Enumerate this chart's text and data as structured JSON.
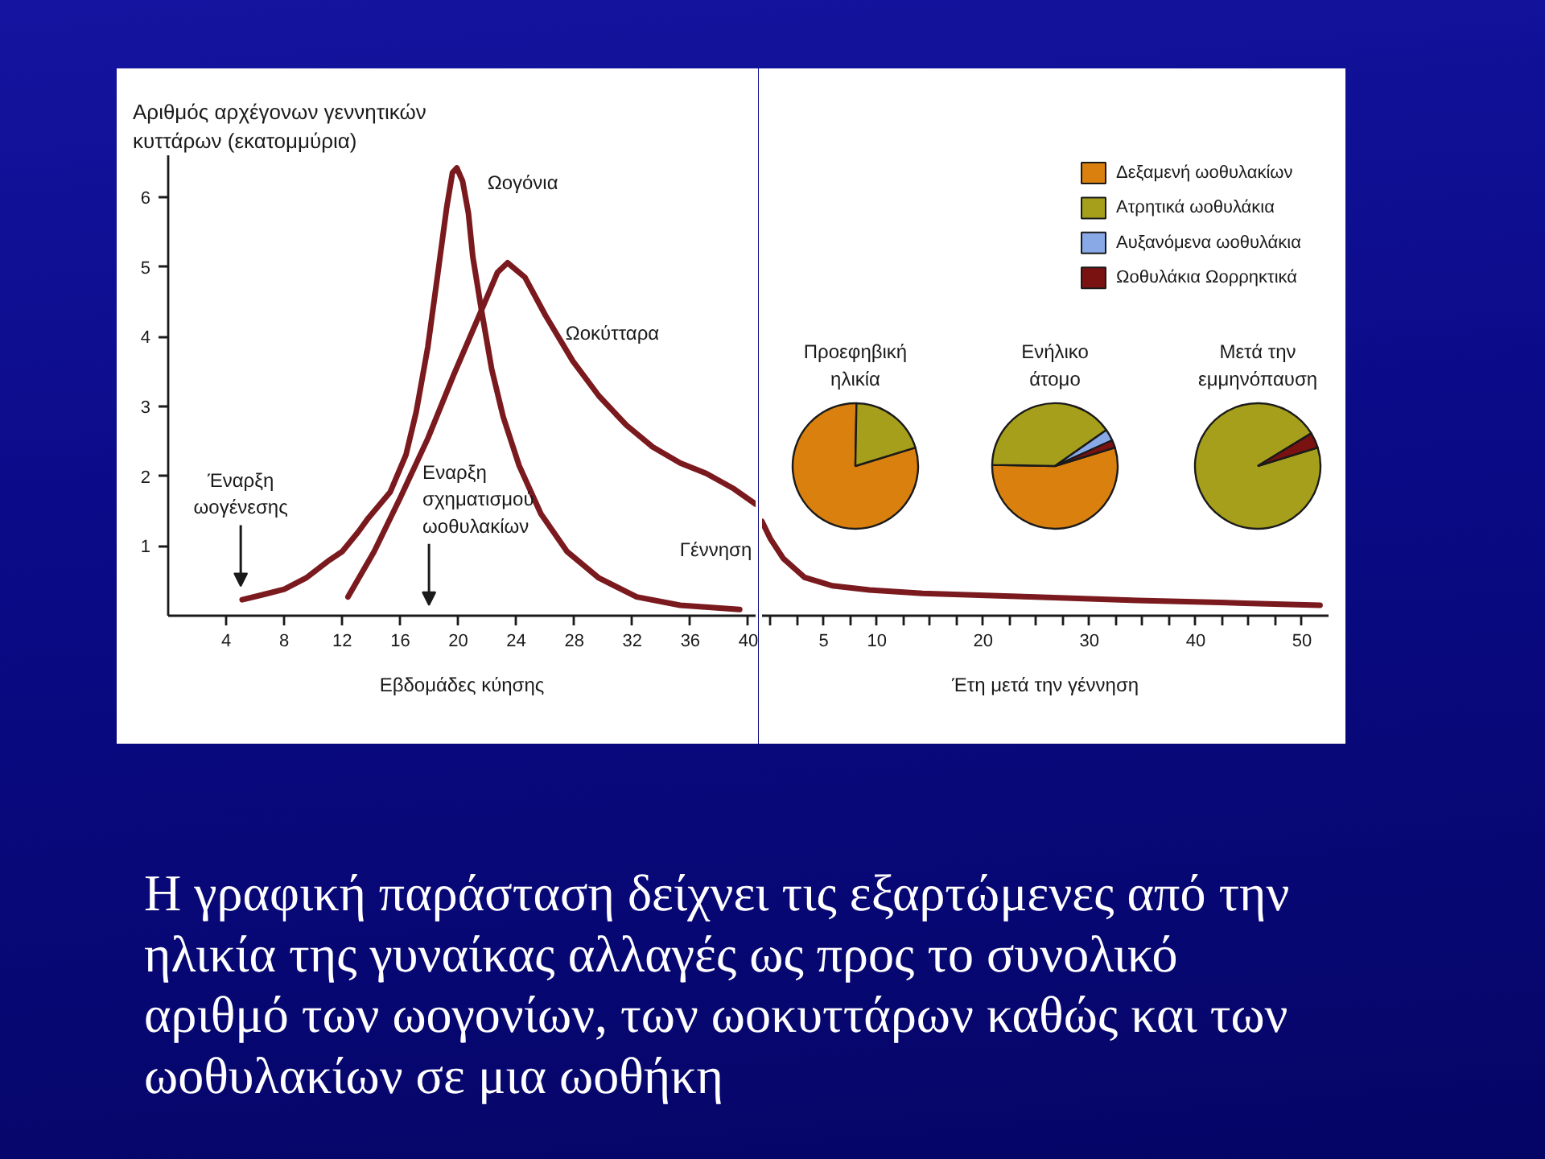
{
  "chart_data": [
    {
      "type": "line",
      "ylabel": "Αριθμός αρχέγονων γεννητικών\nκυττάρων (εκατομμύρια)",
      "xlabel": "Εβδομάδες κύησης",
      "xlim": [
        0,
        40.5
      ],
      "ylim": [
        0,
        6.6
      ],
      "xticks": [
        4,
        8,
        12,
        16,
        20,
        24,
        28,
        32,
        36,
        40
      ],
      "yticks": [
        1,
        2,
        3,
        4,
        5,
        6
      ],
      "series": [
        {
          "name": "Ωογόνια",
          "color": "#7b1a1e",
          "x": [
            5.1,
            6.5,
            8,
            9.5,
            11,
            12,
            13.1,
            13.8,
            15.3,
            16.4,
            17.1,
            17.9,
            18.6,
            19.2,
            19.6,
            19.9,
            20.3,
            20.7,
            21.0,
            21.6,
            22.3,
            23.1,
            24.2,
            25.7,
            27.5,
            29.7,
            32.3,
            35.3,
            39.4
          ],
          "values": [
            0.23,
            0.3,
            0.38,
            0.54,
            0.78,
            0.92,
            1.2,
            1.4,
            1.77,
            2.31,
            2.92,
            3.85,
            4.92,
            5.85,
            6.35,
            6.42,
            6.23,
            5.77,
            5.15,
            4.38,
            3.54,
            2.85,
            2.15,
            1.46,
            0.92,
            0.54,
            0.27,
            0.15,
            0.09
          ]
        },
        {
          "name": "Ωοκύτταρα",
          "color": "#7b1a1e",
          "x": [
            12.4,
            14.2,
            16.0,
            17.9,
            19.7,
            21.6,
            22.7,
            23.4,
            24.6,
            26.0,
            27.9,
            29.7,
            31.6,
            33.4,
            35.3,
            37.1,
            39.0,
            40.5
          ],
          "values": [
            0.27,
            0.92,
            1.69,
            2.54,
            3.46,
            4.38,
            4.92,
            5.06,
            4.85,
            4.31,
            3.65,
            3.15,
            2.73,
            2.42,
            2.19,
            2.04,
            1.82,
            1.6
          ]
        }
      ],
      "annotations": [
        "Έναρξη\nωογένεσης",
        "Εναρξη\nσχηματισμού\nωοθυλακίων",
        "Γέννηση"
      ]
    },
    {
      "type": "line",
      "xlabel": "Έτη μετά την γέννηση",
      "xlim": [
        -0.8,
        52.5
      ],
      "ylim": [
        0,
        6.6
      ],
      "tick_labels": "x",
      "xticks": [
        {
          "value": 0,
          "label": null
        },
        {
          "value": 2.5,
          "label": null
        },
        5,
        {
          "value": 7.5,
          "label": null
        },
        10,
        {
          "value": 12.5,
          "label": null
        },
        {
          "value": 15,
          "label": null
        },
        {
          "value": 17.5,
          "label": null
        },
        20,
        {
          "value": 22.5,
          "label": null
        },
        {
          "value": 25,
          "label": null
        },
        {
          "value": 27.5,
          "label": null
        },
        30,
        {
          "value": 32.5,
          "label": null
        },
        {
          "value": 35,
          "label": null
        },
        {
          "value": 37.5,
          "label": null
        },
        40,
        {
          "value": 42.5,
          "label": null
        },
        {
          "value": 45,
          "label": null
        },
        {
          "value": 47.5,
          "label": null
        },
        50
      ],
      "series": [
        {
          "color": "#7b1a1e",
          "x": [
            -0.8,
            0,
            1.2,
            3.2,
            5.8,
            9.3,
            14.3,
            24.4,
            34.5,
            44.6,
            51.7
          ],
          "values": [
            1.35,
            1.1,
            0.82,
            0.55,
            0.43,
            0.37,
            0.32,
            0.27,
            0.22,
            0.18,
            0.15
          ]
        }
      ]
    },
    {
      "type": "pie",
      "categories": [
        "Δεξαμενή ωοθυλακίων",
        "Ατρητικά ωοθυλάκια",
        "Αυξανόμενα ωοθυλάκια",
        "Ωοθυλάκια Ωορρηκτικά"
      ],
      "colors": [
        "#d9800e",
        "#a69f1c",
        "#88a9e6",
        "#7a1212"
      ],
      "legend": "top right",
      "series": [
        {
          "name": "Προεφηβική\nηλικία",
          "values": [
            80,
            20,
            0,
            0
          ]
        },
        {
          "name": "Ενήλικο\nάτομο",
          "values": [
            55,
            40,
            3,
            2
          ]
        },
        {
          "name": "Μετά την\nεμμηνόπαυση",
          "values": [
            0,
            96,
            0,
            4
          ]
        }
      ]
    },
    {
      "type": "other",
      "annotations": [
        "Η γραφική παράσταση δείχνει τις εξαρτώμενες από την ηλικία της γυναίκας αλλαγές ως προς το συνολικό αριθμό των ωογονίων, των ωοκυττάρων καθώς και των ωοθυλακίων σε μια ωοθήκη"
      ]
    }
  ]
}
